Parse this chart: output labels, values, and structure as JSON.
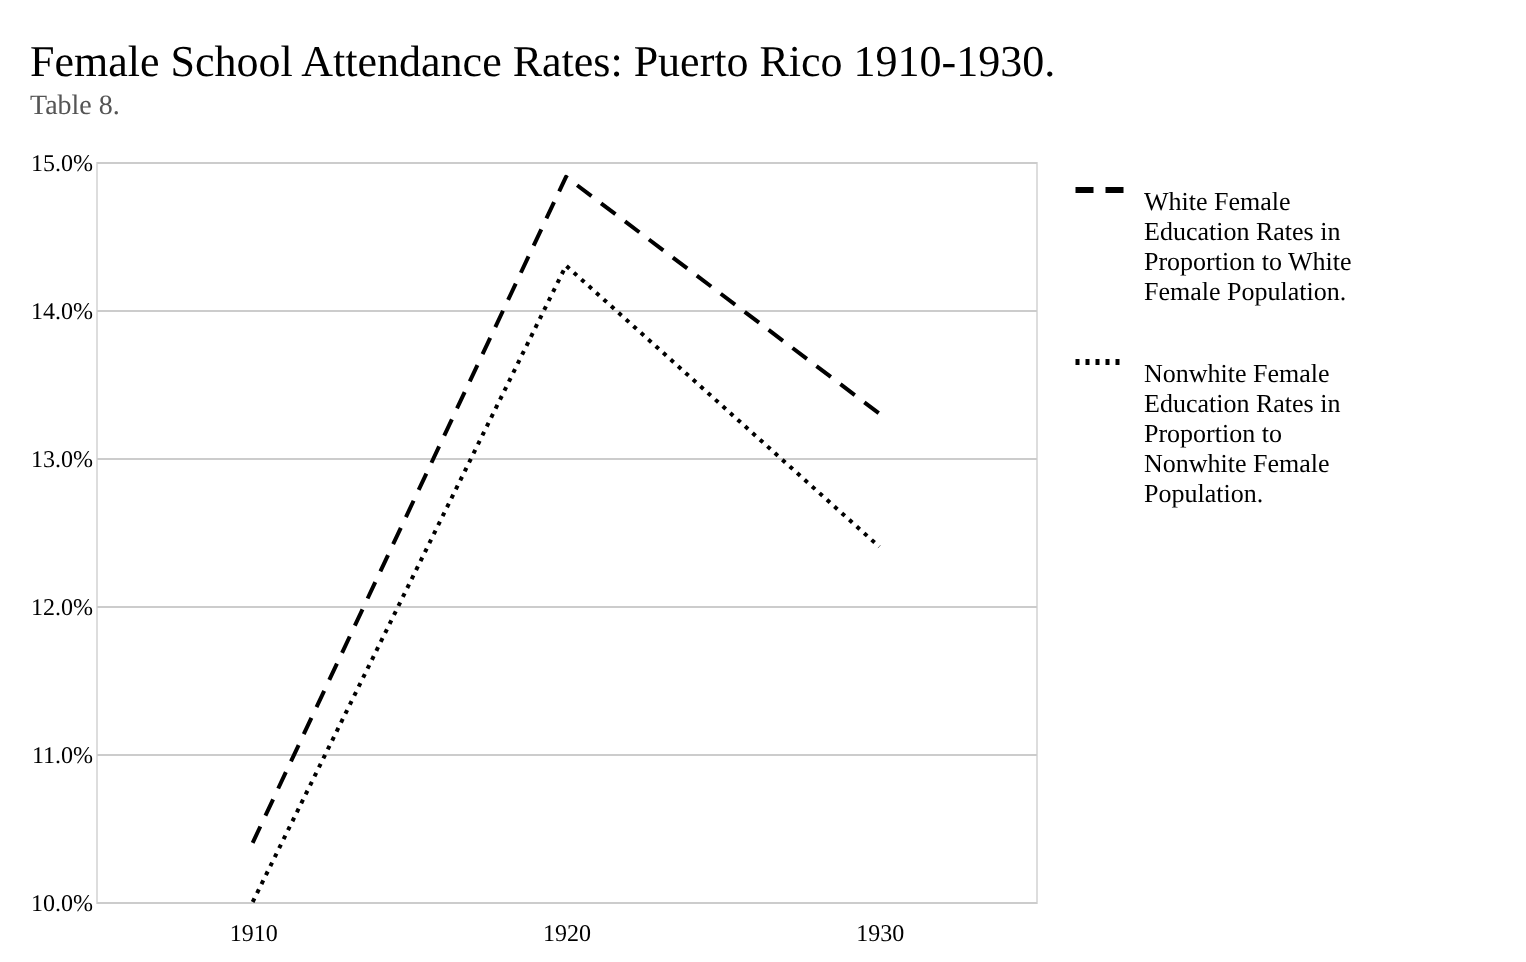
{
  "chart_data": {
    "type": "line",
    "title": "Female School Attendance Rates: Puerto Rico 1910-1930.",
    "subtitle": "Table 8.",
    "categories": [
      "1910",
      "1920",
      "1930"
    ],
    "series": [
      {
        "name": "White Female Education Rates in Proportion to White Female Population.",
        "color": "#000000",
        "line_style": "dashed",
        "values": [
          10.4,
          14.9,
          13.3
        ]
      },
      {
        "name": "Nonwhite Female Education Rates in Proportion to Nonwhite Female Population.",
        "color": "#000000",
        "line_style": "dotted",
        "values": [
          10.0,
          14.3,
          12.4
        ]
      }
    ],
    "ylim": [
      10,
      15
    ],
    "yticks": [
      {
        "value": 10,
        "label": "10.0%"
      },
      {
        "value": 11,
        "label": "11.0%"
      },
      {
        "value": 12,
        "label": "12.0%"
      },
      {
        "value": 13,
        "label": "13.0%"
      },
      {
        "value": 14,
        "label": "14.0%"
      },
      {
        "value": 15,
        "label": "15.0%"
      }
    ],
    "grid": "y",
    "legend": "right",
    "marker": "none"
  }
}
